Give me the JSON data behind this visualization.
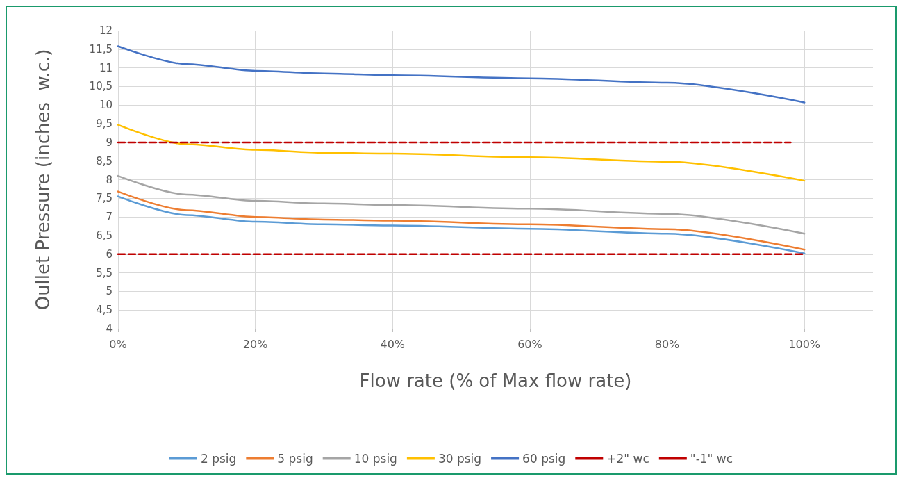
{
  "chart_data": {
    "type": "line",
    "xlabel": "Flow rate (% of Max flow rate)",
    "ylabel": "Oullet Pressure (inches  w.c.)",
    "xlim": [
      0,
      110
    ],
    "xticks": [
      {
        "value": 0,
        "label": "0%"
      },
      {
        "value": 20,
        "label": "20%"
      },
      {
        "value": 40,
        "label": "40%"
      },
      {
        "value": 60,
        "label": "60%"
      },
      {
        "value": 80,
        "label": "80%"
      },
      {
        "value": 100,
        "label": "100%"
      }
    ],
    "ylim": [
      4,
      12
    ],
    "yticks": [
      4,
      {
        "value": 4.5,
        "label": "4,5"
      },
      5,
      {
        "value": 5.5,
        "label": "5,5"
      },
      6,
      {
        "value": 6.5,
        "label": "6,5"
      },
      7,
      {
        "value": 7.5,
        "label": "7,5"
      },
      8,
      {
        "value": 8.5,
        "label": "8,5"
      },
      9,
      {
        "value": 9.5,
        "label": "9,5"
      },
      10,
      {
        "value": 10.5,
        "label": "10,5"
      },
      11,
      {
        "value": 11.5,
        "label": "11,5"
      },
      12
    ],
    "x": [
      0,
      10,
      20,
      30,
      40,
      60,
      80,
      100
    ],
    "series": [
      {
        "name": "2 psig",
        "color": "#5b9bd5",
        "values": [
          7.55,
          7.05,
          6.87,
          6.8,
          6.77,
          6.68,
          6.55,
          6.02
        ]
      },
      {
        "name": "5 psig",
        "color": "#ed7d31",
        "values": [
          7.68,
          7.18,
          7.0,
          6.93,
          6.9,
          6.8,
          6.67,
          6.12
        ]
      },
      {
        "name": "10 psig",
        "color": "#a5a5a5",
        "values": [
          8.1,
          7.6,
          7.43,
          7.36,
          7.32,
          7.22,
          7.08,
          6.55
        ]
      },
      {
        "name": "30 psig",
        "color": "#ffc000",
        "values": [
          9.47,
          8.95,
          8.8,
          8.72,
          8.7,
          8.6,
          8.48,
          7.97
        ]
      },
      {
        "name": "60 psig",
        "color": "#4472c4",
        "values": [
          11.58,
          11.1,
          10.92,
          10.85,
          10.8,
          10.72,
          10.6,
          10.07
        ]
      },
      {
        "name": "+2\" wc",
        "color": "#c00000",
        "line_style": "dashed",
        "x": [
          0,
          98
        ],
        "values": [
          9,
          9
        ]
      },
      {
        "name": "\"-1\" wc",
        "color": "#c00000",
        "line_style": "dashed",
        "x": [
          0,
          100
        ],
        "values": [
          6,
          6
        ]
      }
    ],
    "grid": true,
    "legend": "bottom",
    "marker": "none",
    "line_style": "solid"
  }
}
